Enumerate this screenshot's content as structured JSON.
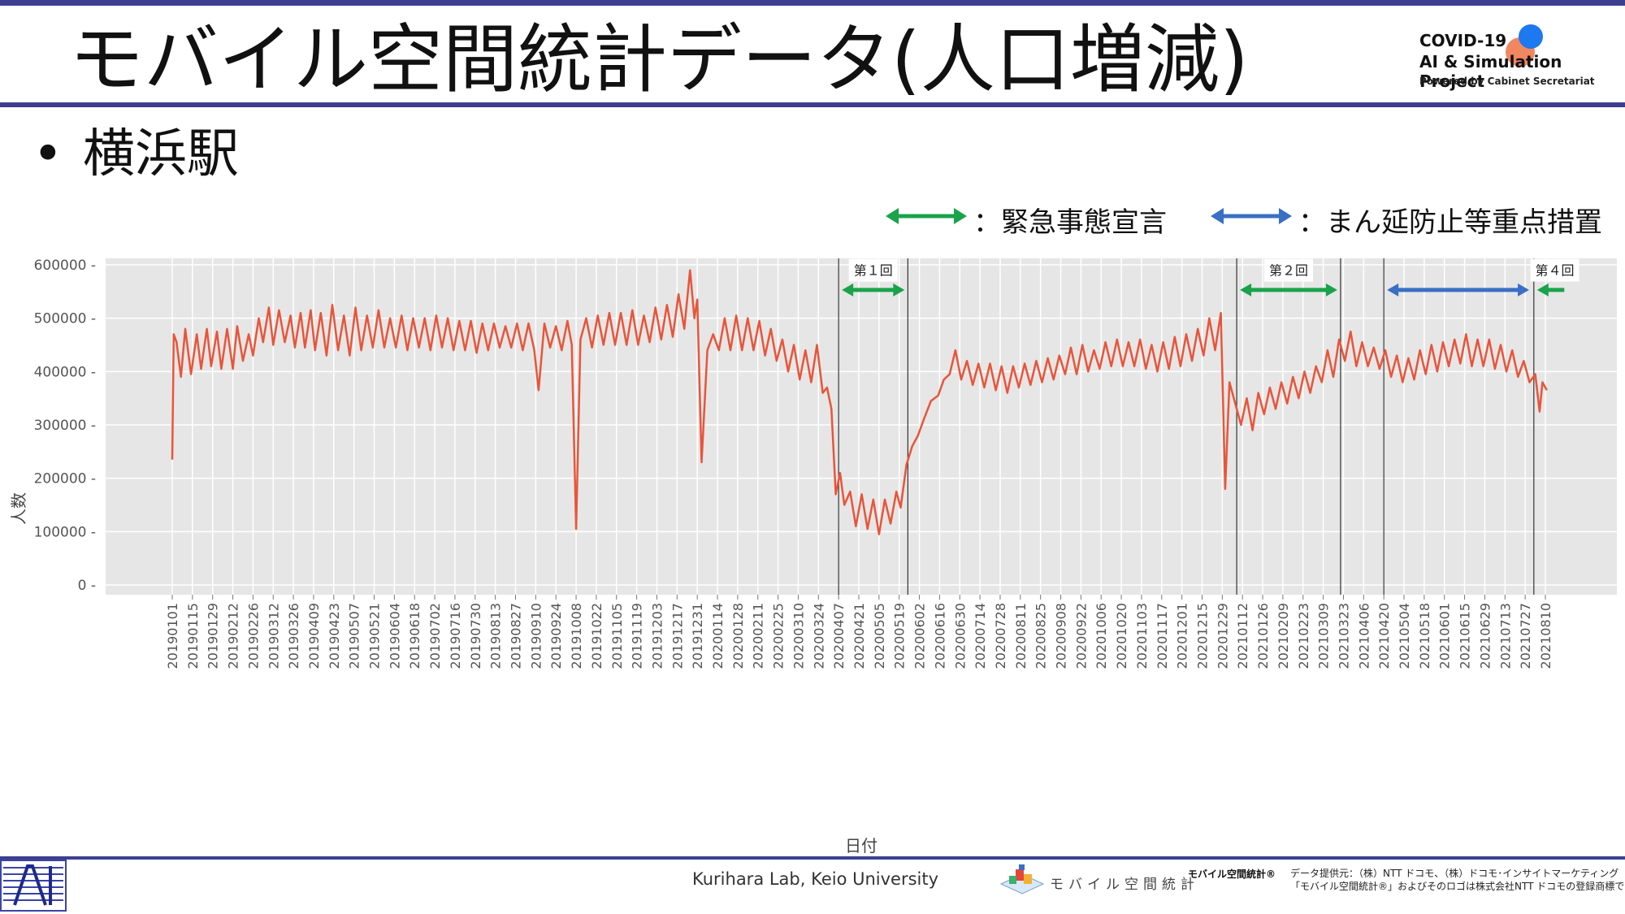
{
  "header": {
    "title": "モバイル空間統計データ(人口増減)",
    "logo_line1": "COVID-19",
    "logo_line2": "AI & Simulation Project",
    "logo_line3": "Powered by Cabinet Secretariat"
  },
  "bullet": {
    "marker": "•",
    "text": "横浜駅"
  },
  "legend": {
    "emergency_label": "：緊急事態宣言",
    "priority_label": "：まん延防止等重点措置",
    "emergency_color": "#1aa34a",
    "priority_color": "#3a6fc4"
  },
  "footer": {
    "lab": "Kurihara Lab, Keio University",
    "mobile_logo_text": "モバイル空間統計",
    "mobile_logo_small": "モバイル空間統計®",
    "notice_line1": "データ提供元：（株）NTT ドコモ、（株）ドコモ･インサイトマーケティング",
    "notice_line2": "「モバイル空間統計®」およびそのロゴは株式会社NTT ドコモの登録商標です。"
  },
  "chart_data": {
    "type": "line",
    "xlabel": "日付",
    "ylabel": "人数",
    "ylim": [
      0,
      600000
    ],
    "yticks": [
      0,
      100000,
      200000,
      300000,
      400000,
      500000,
      600000
    ],
    "xticks": [
      "20190101",
      "20190115",
      "20190129",
      "20190212",
      "20190226",
      "20190312",
      "20190326",
      "20190409",
      "20190423",
      "20190507",
      "20190521",
      "20190604",
      "20190618",
      "20190702",
      "20190716",
      "20190730",
      "20190813",
      "20190827",
      "20190910",
      "20190924",
      "20191008",
      "20191022",
      "20191105",
      "20191119",
      "20191203",
      "20191217",
      "20191231",
      "20200114",
      "20200128",
      "20200211",
      "20200225",
      "20200310",
      "20200324",
      "20200407",
      "20200421",
      "20200505",
      "20200519",
      "20200602",
      "20200616",
      "20200630",
      "20200714",
      "20200728",
      "20200811",
      "20200825",
      "20200908",
      "20200922",
      "20201006",
      "20201020",
      "20201103",
      "20201117",
      "20201201",
      "20201215",
      "20201229",
      "20210112",
      "20210126",
      "20210209",
      "20210223",
      "20210309",
      "20210323",
      "20210406",
      "20210420",
      "20210504",
      "20210518",
      "20210601",
      "20210615",
      "20210629",
      "20210713",
      "20210727",
      "20210810"
    ],
    "line_color": "#e8553a",
    "background": "#e6e6e6",
    "grid": true,
    "series": [
      {
        "name": "",
        "points": [
          [
            "20190101",
            235000
          ],
          [
            "20190102",
            470000
          ],
          [
            "20190104",
            455000
          ],
          [
            "20190107",
            390000
          ],
          [
            "20190110",
            480000
          ],
          [
            "20190114",
            395000
          ],
          [
            "20190118",
            470000
          ],
          [
            "20190121",
            405000
          ],
          [
            "20190125",
            480000
          ],
          [
            "20190128",
            410000
          ],
          [
            "20190201",
            475000
          ],
          [
            "20190204",
            405000
          ],
          [
            "20190208",
            480000
          ],
          [
            "20190212",
            405000
          ],
          [
            "20190215",
            485000
          ],
          [
            "20190219",
            420000
          ],
          [
            "20190223",
            470000
          ],
          [
            "20190226",
            430000
          ],
          [
            "20190302",
            500000
          ],
          [
            "20190305",
            455000
          ],
          [
            "20190309",
            520000
          ],
          [
            "20190312",
            450000
          ],
          [
            "20190316",
            515000
          ],
          [
            "20190320",
            455000
          ],
          [
            "20190324",
            505000
          ],
          [
            "20190327",
            445000
          ],
          [
            "20190331",
            510000
          ],
          [
            "20190403",
            445000
          ],
          [
            "20190407",
            515000
          ],
          [
            "20190410",
            440000
          ],
          [
            "20190414",
            510000
          ],
          [
            "20190418",
            430000
          ],
          [
            "20190422",
            525000
          ],
          [
            "20190426",
            440000
          ],
          [
            "20190430",
            505000
          ],
          [
            "20190504",
            430000
          ],
          [
            "20190508",
            520000
          ],
          [
            "20190512",
            440000
          ],
          [
            "20190516",
            505000
          ],
          [
            "20190520",
            445000
          ],
          [
            "20190524",
            515000
          ],
          [
            "20190528",
            445000
          ],
          [
            "20190601",
            500000
          ],
          [
            "20190605",
            445000
          ],
          [
            "20190609",
            505000
          ],
          [
            "20190613",
            440000
          ],
          [
            "20190617",
            500000
          ],
          [
            "20190621",
            445000
          ],
          [
            "20190625",
            500000
          ],
          [
            "20190629",
            440000
          ],
          [
            "20190703",
            505000
          ],
          [
            "20190707",
            445000
          ],
          [
            "20190711",
            500000
          ],
          [
            "20190715",
            440000
          ],
          [
            "20190719",
            495000
          ],
          [
            "20190723",
            440000
          ],
          [
            "20190727",
            495000
          ],
          [
            "20190731",
            435000
          ],
          [
            "20190804",
            490000
          ],
          [
            "20190808",
            440000
          ],
          [
            "20190812",
            490000
          ],
          [
            "20190816",
            445000
          ],
          [
            "20190820",
            485000
          ],
          [
            "20190824",
            445000
          ],
          [
            "20190828",
            490000
          ],
          [
            "20190901",
            440000
          ],
          [
            "20190905",
            490000
          ],
          [
            "20190909",
            440000
          ],
          [
            "20190912",
            365000
          ],
          [
            "20190916",
            490000
          ],
          [
            "20190920",
            445000
          ],
          [
            "20190924",
            485000
          ],
          [
            "20190928",
            440000
          ],
          [
            "20191002",
            495000
          ],
          [
            "20191005",
            450000
          ],
          [
            "20191008",
            105000
          ],
          [
            "20191011",
            460000
          ],
          [
            "20191015",
            500000
          ],
          [
            "20191019",
            445000
          ],
          [
            "20191023",
            505000
          ],
          [
            "20191027",
            450000
          ],
          [
            "20191031",
            510000
          ],
          [
            "20191104",
            450000
          ],
          [
            "20191108",
            510000
          ],
          [
            "20191112",
            450000
          ],
          [
            "20191116",
            515000
          ],
          [
            "20191120",
            450000
          ],
          [
            "20191124",
            505000
          ],
          [
            "20191128",
            455000
          ],
          [
            "20191202",
            520000
          ],
          [
            "20191206",
            460000
          ],
          [
            "20191210",
            525000
          ],
          [
            "20191214",
            465000
          ],
          [
            "20191218",
            545000
          ],
          [
            "20191222",
            480000
          ],
          [
            "20191226",
            590000
          ],
          [
            "20191229",
            500000
          ],
          [
            "20191231",
            535000
          ],
          [
            "20200103",
            230000
          ],
          [
            "20200107",
            440000
          ],
          [
            "20200111",
            470000
          ],
          [
            "20200115",
            440000
          ],
          [
            "20200119",
            500000
          ],
          [
            "20200123",
            440000
          ],
          [
            "20200127",
            505000
          ],
          [
            "20200131",
            440000
          ],
          [
            "20200204",
            500000
          ],
          [
            "20200208",
            440000
          ],
          [
            "20200212",
            495000
          ],
          [
            "20200216",
            430000
          ],
          [
            "20200220",
            480000
          ],
          [
            "20200224",
            420000
          ],
          [
            "20200228",
            460000
          ],
          [
            "20200303",
            400000
          ],
          [
            "20200307",
            450000
          ],
          [
            "20200311",
            385000
          ],
          [
            "20200315",
            440000
          ],
          [
            "20200319",
            380000
          ],
          [
            "20200323",
            450000
          ],
          [
            "20200327",
            360000
          ],
          [
            "20200330",
            370000
          ],
          [
            "20200402",
            330000
          ],
          [
            "20200405",
            170000
          ],
          [
            "20200408",
            210000
          ],
          [
            "20200411",
            150000
          ],
          [
            "20200415",
            175000
          ],
          [
            "20200419",
            110000
          ],
          [
            "20200423",
            170000
          ],
          [
            "20200427",
            105000
          ],
          [
            "20200501",
            160000
          ],
          [
            "20200505",
            95000
          ],
          [
            "20200509",
            160000
          ],
          [
            "20200513",
            115000
          ],
          [
            "20200517",
            175000
          ],
          [
            "20200520",
            145000
          ],
          [
            "20200524",
            225000
          ],
          [
            "20200528",
            260000
          ],
          [
            "20200601",
            280000
          ],
          [
            "20200605",
            310000
          ],
          [
            "20200610",
            345000
          ],
          [
            "20200615",
            355000
          ],
          [
            "20200619",
            385000
          ],
          [
            "20200623",
            395000
          ],
          [
            "20200627",
            440000
          ],
          [
            "20200701",
            385000
          ],
          [
            "20200705",
            420000
          ],
          [
            "20200709",
            375000
          ],
          [
            "20200713",
            415000
          ],
          [
            "20200717",
            370000
          ],
          [
            "20200721",
            415000
          ],
          [
            "20200725",
            365000
          ],
          [
            "20200729",
            410000
          ],
          [
            "20200802",
            360000
          ],
          [
            "20200806",
            410000
          ],
          [
            "20200810",
            370000
          ],
          [
            "20200814",
            415000
          ],
          [
            "20200818",
            375000
          ],
          [
            "20200822",
            420000
          ],
          [
            "20200826",
            380000
          ],
          [
            "20200830",
            425000
          ],
          [
            "20200903",
            385000
          ],
          [
            "20200907",
            430000
          ],
          [
            "20200911",
            395000
          ],
          [
            "20200915",
            445000
          ],
          [
            "20200919",
            395000
          ],
          [
            "20200923",
            450000
          ],
          [
            "20200927",
            400000
          ],
          [
            "20201001",
            440000
          ],
          [
            "20201005",
            405000
          ],
          [
            "20201009",
            455000
          ],
          [
            "20201013",
            410000
          ],
          [
            "20201017",
            460000
          ],
          [
            "20201021",
            410000
          ],
          [
            "20201025",
            455000
          ],
          [
            "20201029",
            410000
          ],
          [
            "20201102",
            460000
          ],
          [
            "20201106",
            405000
          ],
          [
            "20201110",
            450000
          ],
          [
            "20201114",
            400000
          ],
          [
            "20201118",
            455000
          ],
          [
            "20201122",
            405000
          ],
          [
            "20201126",
            465000
          ],
          [
            "20201130",
            410000
          ],
          [
            "20201204",
            470000
          ],
          [
            "20201208",
            420000
          ],
          [
            "20201212",
            480000
          ],
          [
            "20201216",
            430000
          ],
          [
            "20201220",
            500000
          ],
          [
            "20201224",
            440000
          ],
          [
            "20201228",
            510000
          ],
          [
            "20201231",
            180000
          ],
          [
            "20210103",
            380000
          ],
          [
            "20210107",
            340000
          ],
          [
            "20210111",
            300000
          ],
          [
            "20210115",
            350000
          ],
          [
            "20210119",
            290000
          ],
          [
            "20210123",
            360000
          ],
          [
            "20210127",
            320000
          ],
          [
            "20210131",
            370000
          ],
          [
            "20210204",
            330000
          ],
          [
            "20210208",
            380000
          ],
          [
            "20210212",
            340000
          ],
          [
            "20210216",
            390000
          ],
          [
            "20210220",
            350000
          ],
          [
            "20210224",
            400000
          ],
          [
            "20210228",
            360000
          ],
          [
            "20210304",
            410000
          ],
          [
            "20210308",
            380000
          ],
          [
            "20210312",
            440000
          ],
          [
            "20210316",
            390000
          ],
          [
            "20210320",
            460000
          ],
          [
            "20210324",
            420000
          ],
          [
            "20210328",
            475000
          ],
          [
            "20210401",
            410000
          ],
          [
            "20210405",
            455000
          ],
          [
            "20210409",
            410000
          ],
          [
            "20210413",
            445000
          ],
          [
            "20210417",
            405000
          ],
          [
            "20210421",
            440000
          ],
          [
            "20210425",
            390000
          ],
          [
            "20210429",
            430000
          ],
          [
            "20210503",
            380000
          ],
          [
            "20210507",
            425000
          ],
          [
            "20210511",
            385000
          ],
          [
            "20210515",
            440000
          ],
          [
            "20210519",
            395000
          ],
          [
            "20210523",
            450000
          ],
          [
            "20210527",
            400000
          ],
          [
            "20210531",
            455000
          ],
          [
            "20210604",
            410000
          ],
          [
            "20210608",
            460000
          ],
          [
            "20210612",
            415000
          ],
          [
            "20210616",
            470000
          ],
          [
            "20210620",
            410000
          ],
          [
            "20210624",
            460000
          ],
          [
            "20210628",
            410000
          ],
          [
            "20210702",
            460000
          ],
          [
            "20210706",
            405000
          ],
          [
            "20210710",
            450000
          ],
          [
            "20210714",
            400000
          ],
          [
            "20210718",
            440000
          ],
          [
            "20210722",
            390000
          ],
          [
            "20210726",
            420000
          ],
          [
            "20210730",
            380000
          ],
          [
            "20210803",
            395000
          ],
          [
            "20210806",
            325000
          ],
          [
            "20210808",
            380000
          ],
          [
            "20210811",
            365000
          ]
        ]
      }
    ],
    "vlines": [
      "20200407",
      "20200525",
      "20210108",
      "20210321",
      "20210420",
      "20210802"
    ],
    "annotations": [
      {
        "label": "第１回",
        "type": "emergency",
        "start": "20200407",
        "end": "20200525"
      },
      {
        "label": "第２回",
        "type": "emergency",
        "start": "20210108",
        "end": "20210321"
      },
      {
        "label": "",
        "type": "priority",
        "start": "20210420",
        "end": "20210801"
      },
      {
        "label": "第４回",
        "type": "emergency",
        "start": "20210802",
        "end": "20210831"
      }
    ]
  }
}
